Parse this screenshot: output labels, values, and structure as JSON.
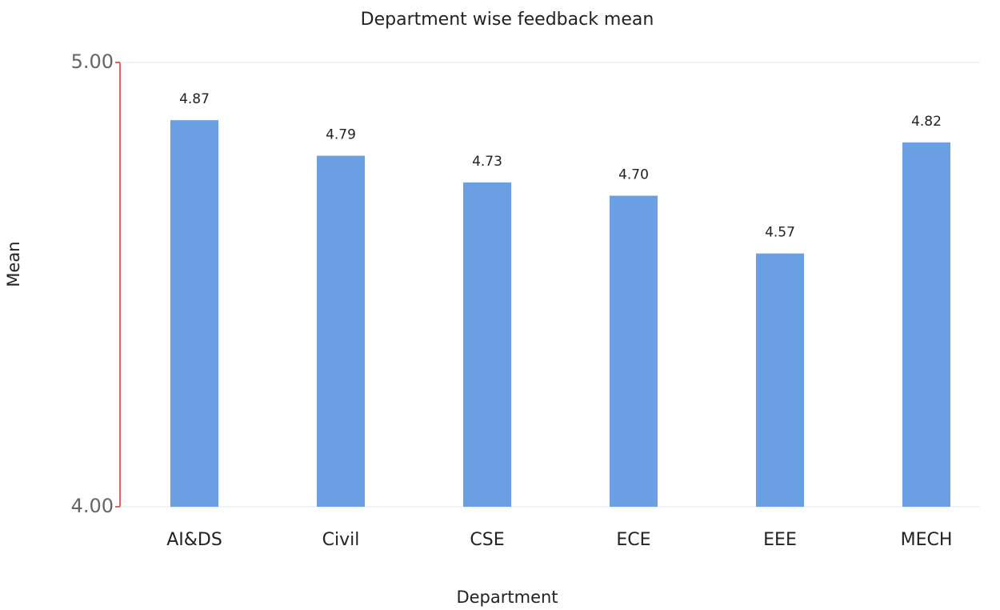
{
  "chart_data": {
    "type": "bar",
    "title": "Department wise feedback mean",
    "x_label": "Department",
    "y_label": "Mean",
    "categories": [
      "AI&DS",
      "Civil",
      "CSE",
      "ECE",
      "EEE",
      "MECH"
    ],
    "values": [
      4.87,
      4.79,
      4.73,
      4.7,
      4.57,
      4.82
    ],
    "value_labels": [
      "4.87",
      "4.79",
      "4.73",
      "4.70",
      "4.57",
      "4.82"
    ],
    "color": "#6a9fe4",
    "ylim": [
      4,
      5
    ],
    "yticks": [
      {
        "value": 4,
        "label": "4.00"
      },
      {
        "value": 5,
        "label": "5.00"
      }
    ],
    "grid": true
  }
}
